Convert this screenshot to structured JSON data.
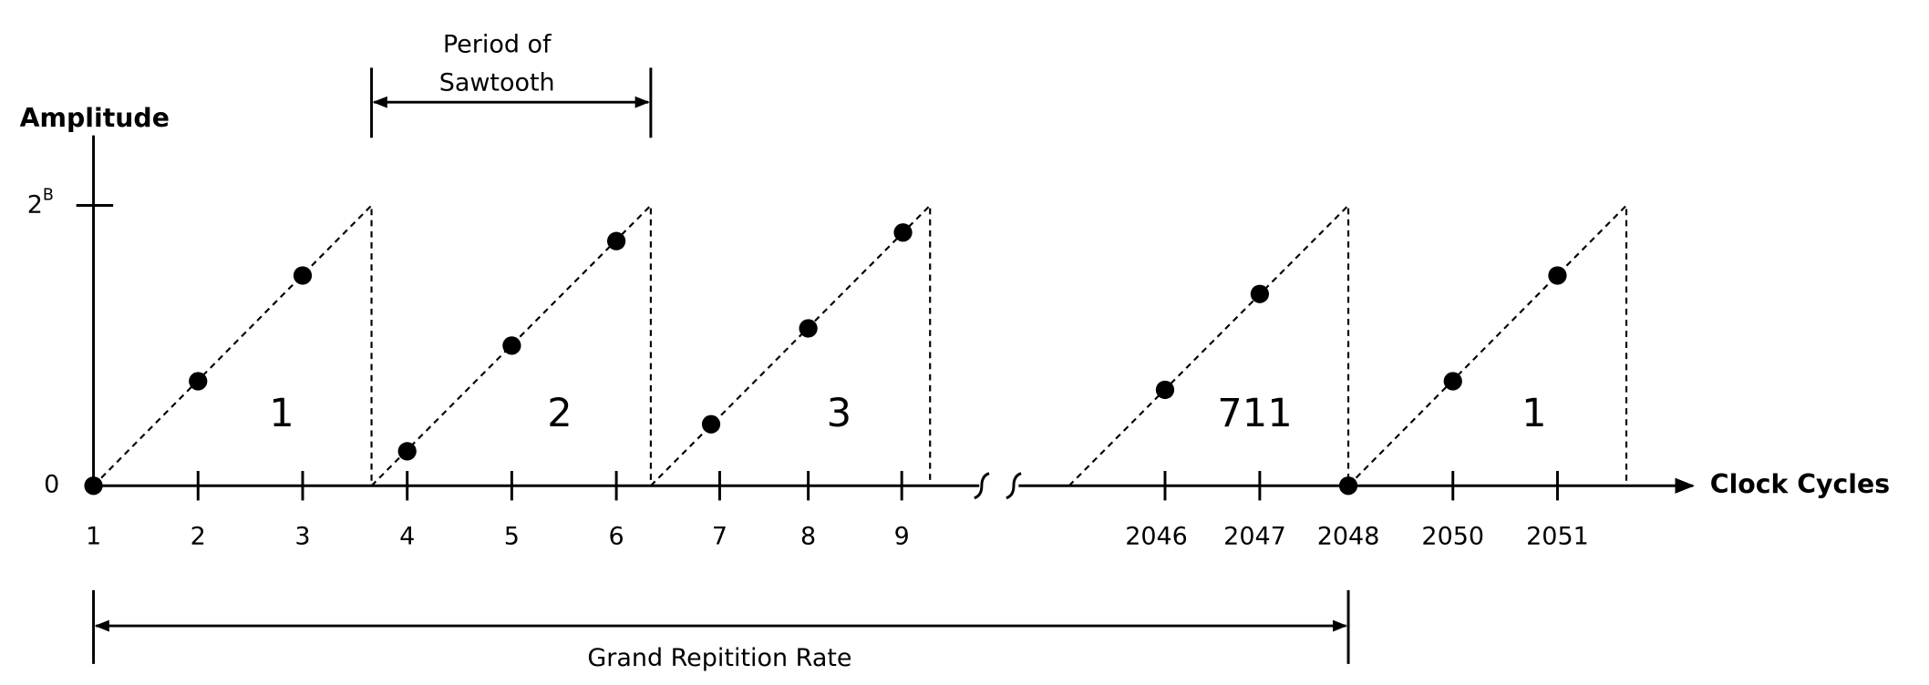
{
  "period_label": [
    "Period of",
    "Sawtooth"
  ],
  "y_axis": {
    "title": "Amplitude",
    "top_label": {
      "base": "2",
      "superscript": "B"
    },
    "zero_label": "0"
  },
  "x_axis": {
    "title": "Clock Cycles",
    "tick_labels": [
      "1",
      "2",
      "3",
      "4",
      "5",
      "6",
      "7",
      "8",
      "9",
      "2046",
      "2047",
      "2048",
      "2050",
      "2051"
    ]
  },
  "sawtooth_labels": [
    "1",
    "2",
    "3",
    "711",
    "1"
  ],
  "grand_label": "Grand Repitition Rate"
}
